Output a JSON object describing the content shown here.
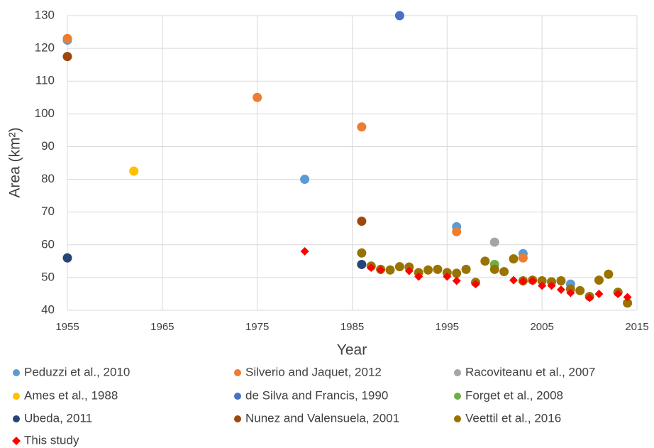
{
  "chart_data": {
    "type": "scatter",
    "x_label": "Year",
    "y_label": "Area (km²)",
    "xlim": [
      1955,
      2015
    ],
    "xticks": [
      1955,
      1965,
      1975,
      1985,
      1995,
      2005,
      2015
    ],
    "ylim": [
      40,
      130
    ],
    "yticks": [
      40,
      50,
      60,
      70,
      80,
      90,
      100,
      110,
      120,
      130
    ],
    "grid": true,
    "legend": "bottom",
    "series": [
      {
        "name": "Peduzzi et al., 2010",
        "color": "#5b9bd5",
        "marker": "circle",
        "x": [
          1955,
          1980,
          1996,
          2003,
          2008
        ],
        "values": [
          122.5,
          80,
          65.5,
          57.3,
          48
        ]
      },
      {
        "name": "Silverio and Jaquet, 2012",
        "color": "#ed7d31",
        "marker": "circle",
        "x": [
          1955,
          1975,
          1986,
          1996,
          2003
        ],
        "values": [
          123,
          105,
          96,
          64,
          56
        ]
      },
      {
        "name": "Racoviteanu et al., 2007",
        "color": "#a5a5a5",
        "marker": "circle",
        "x": [
          2000
        ],
        "values": [
          60.8
        ]
      },
      {
        "name": "Ames et al., 1988",
        "color": "#ffc000",
        "marker": "circle",
        "x": [
          1962
        ],
        "values": [
          82.5
        ]
      },
      {
        "name": "de Silva and Francis, 1990",
        "color": "#4472c4",
        "marker": "circle",
        "x": [
          1990
        ],
        "values": [
          130
        ]
      },
      {
        "name": "Forget et al., 2008",
        "color": "#70ad47",
        "marker": "circle",
        "x": [
          2000
        ],
        "values": [
          54
        ]
      },
      {
        "name": "Ubeda, 2011",
        "color": "#264478",
        "marker": "circle",
        "x": [
          1955,
          1986
        ],
        "values": [
          56,
          54
        ]
      },
      {
        "name": "Nunez and Valensuela, 2001",
        "color": "#9e480e",
        "marker": "circle",
        "x": [
          1955,
          1986
        ],
        "values": [
          117.5,
          67.2
        ]
      },
      {
        "name": "Veettil et al., 2016",
        "color": "#997300",
        "marker": "circle",
        "x": [
          1986,
          1987,
          1988,
          1989,
          1990,
          1991,
          1992,
          1993,
          1994,
          1995,
          1996,
          1997,
          1998,
          1999,
          2000,
          2001,
          2002,
          2003,
          2004,
          2005,
          2006,
          2007,
          2008,
          2009,
          2010,
          2011,
          2012,
          2013,
          2014
        ],
        "values": [
          57.5,
          53.5,
          52.5,
          52.3,
          53.3,
          53.2,
          51.5,
          52.3,
          52.5,
          51.5,
          51.3,
          52.5,
          48.5,
          55,
          52.5,
          51.8,
          55.7,
          49,
          49.2,
          49,
          48.7,
          49,
          46.5,
          46,
          44.2,
          49.2,
          51,
          45.5,
          42.2
        ]
      },
      {
        "name": "This study",
        "color": "#ff0000",
        "marker": "diamond",
        "x": [
          1980,
          1987,
          1988,
          1991,
          1992,
          1995,
          1996,
          1998,
          2002,
          2003,
          2004,
          2005,
          2006,
          2007,
          2008,
          2010,
          2011,
          2013,
          2014
        ],
        "values": [
          58,
          53,
          52.3,
          52,
          50.3,
          50.3,
          49,
          48,
          49.2,
          48.8,
          49,
          47.5,
          47.5,
          46.3,
          45.3,
          43.8,
          45,
          45,
          44
        ]
      }
    ]
  }
}
